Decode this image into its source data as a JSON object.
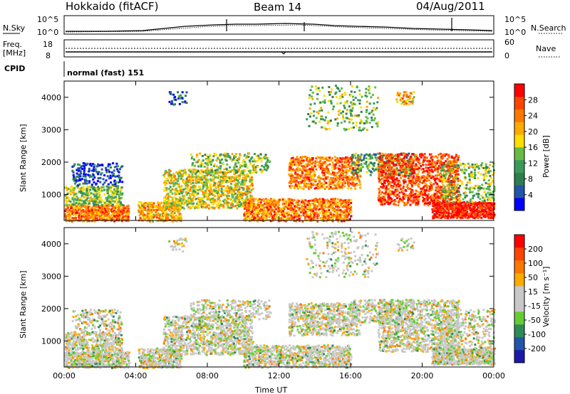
{
  "header": {
    "station": "Hokkaido (fitACF)",
    "beam": "Beam 14",
    "date": "04/Aug/2011"
  },
  "noise_panel": {
    "left_label": "N.Sky",
    "right_label": "N.Search",
    "left_ticks": [
      "10^5",
      "10^0"
    ],
    "right_ticks": [
      "10^5",
      "10^0"
    ]
  },
  "freq_panel": {
    "left_label_1": "Freq.",
    "left_label_2": "[MHz]",
    "left_ticks": [
      "18",
      "8"
    ],
    "right_label": "Nave",
    "right_ticks": [
      "60",
      "0"
    ]
  },
  "cpid_panel": {
    "label": "CPID",
    "text": "normal (fast) 151"
  },
  "colors": {
    "power": [
      "#0000ff",
      "#2255aa",
      "#2e7d4f",
      "#3a9a5a",
      "#66bb44",
      "#ffdd00",
      "#ffaa00",
      "#ff7700",
      "#ff4400",
      "#ff0000"
    ],
    "velocity": [
      "#1a1aaa",
      "#2255aa",
      "#2e8b57",
      "#66cc33",
      "#c8c8c8",
      "#c8c8c8",
      "#ffaa00",
      "#ff7700",
      "#ff4400",
      "#ff0000"
    ]
  },
  "chart_data": [
    {
      "type": "heatmap",
      "ylabel": "Slant Range [km]",
      "ylim": [
        200,
        4500
      ],
      "yticks": [
        "1000",
        "2000",
        "3000",
        "4000"
      ],
      "xlim": [
        0,
        24
      ],
      "colorbar_label": "Power [dB]",
      "colorbar_ticks": [
        "28",
        "24",
        "20",
        "16",
        "12",
        "8",
        "4"
      ],
      "colorbar_range": [
        0,
        32
      ]
    },
    {
      "type": "heatmap",
      "ylabel": "Slant Range [km]",
      "xlabel": "Time UT",
      "ylim": [
        200,
        4500
      ],
      "yticks": [
        "1000",
        "2000",
        "3000",
        "4000"
      ],
      "xticks": [
        "00:00",
        "04:00",
        "08:00",
        "12:00",
        "16:00",
        "20:00",
        "00:00"
      ],
      "xlim": [
        0,
        24
      ],
      "colorbar_label": "Velocity [m s⁻¹]",
      "colorbar_ticks": [
        "200",
        "100",
        "50",
        "15",
        "-15",
        "-50",
        "-100",
        "-200"
      ]
    }
  ]
}
